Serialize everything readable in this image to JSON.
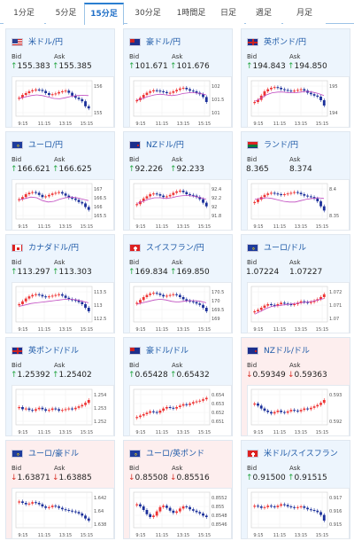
{
  "tabs": [
    {
      "label": "1分足",
      "active": false
    },
    {
      "label": "5分足",
      "active": false
    },
    {
      "label": "15分足",
      "active": true
    },
    {
      "label": "30分足",
      "active": false
    },
    {
      "label": "1時間足",
      "active": false
    },
    {
      "label": "日足",
      "active": false
    },
    {
      "label": "週足",
      "active": false
    },
    {
      "label": "月足",
      "active": false
    }
  ],
  "labels": {
    "bid": "Bid",
    "ask": "Ask"
  },
  "colors": {
    "up_arrow": "#28a745",
    "down_arrow": "#d9342b",
    "link": "#1e5aa8",
    "bull": "#e33",
    "bear": "#1a2f9a",
    "ma": "#c04ac0"
  },
  "pairs": [
    {
      "name": "米ドル/円",
      "flag": "us",
      "direction": "up",
      "bid": "155.383",
      "ask": "155.385",
      "yticks": [
        "156",
        "155"
      ],
      "xticks": [
        "9:15",
        "11:15",
        "13:15",
        "15:15"
      ],
      "trend": [
        0.52,
        0.6,
        0.65,
        0.7,
        0.73,
        0.75,
        0.74,
        0.71,
        0.65,
        0.6,
        0.62,
        0.64,
        0.68,
        0.7,
        0.72,
        0.66,
        0.58,
        0.52,
        0.48,
        0.42,
        0.28,
        0.22
      ],
      "ma": [
        0.5,
        0.54,
        0.58,
        0.6,
        0.58,
        0.54,
        0.5,
        0.49,
        0.52,
        0.56,
        0.58,
        0.59,
        0.58
      ]
    },
    {
      "name": "豪ドル/円",
      "flag": "au",
      "direction": "up",
      "bid": "101.671",
      "ask": "101.676",
      "yticks": [
        "102",
        "101.5",
        "101"
      ],
      "xticks": [
        "9:15",
        "11:15",
        "13:15",
        "15:15"
      ],
      "trend": [
        0.45,
        0.52,
        0.6,
        0.66,
        0.7,
        0.73,
        0.72,
        0.7,
        0.68,
        0.65,
        0.66,
        0.7,
        0.74,
        0.78,
        0.8,
        0.76,
        0.72,
        0.7,
        0.66,
        0.62,
        0.54,
        0.4
      ],
      "ma": [
        0.46,
        0.5,
        0.56,
        0.6,
        0.62,
        0.6,
        0.58,
        0.6,
        0.64,
        0.66,
        0.66,
        0.64,
        0.6
      ]
    },
    {
      "name": "英ポンド/円",
      "flag": "uk",
      "direction": "up",
      "bid": "194.843",
      "ask": "194.850",
      "yticks": [
        "195",
        "194"
      ],
      "xticks": [
        "9:15",
        "11:15",
        "13:15",
        "15:15"
      ],
      "trend": [
        0.4,
        0.46,
        0.58,
        0.7,
        0.76,
        0.8,
        0.82,
        0.8,
        0.76,
        0.74,
        0.72,
        0.7,
        0.72,
        0.74,
        0.76,
        0.72,
        0.66,
        0.62,
        0.58,
        0.55,
        0.45,
        0.3
      ],
      "ma": [
        0.42,
        0.5,
        0.6,
        0.66,
        0.68,
        0.68,
        0.66,
        0.66,
        0.68,
        0.7,
        0.68,
        0.64,
        0.58
      ]
    },
    {
      "name": "ユーロ/円",
      "flag": "eu",
      "direction": "up",
      "bid": "166.621",
      "ask": "166.625",
      "yticks": [
        "167",
        "166.5",
        "166",
        "165.5"
      ],
      "xticks": [
        "9:15",
        "11:15",
        "13:15",
        "15:15"
      ],
      "trend": [
        0.56,
        0.62,
        0.7,
        0.74,
        0.76,
        0.74,
        0.68,
        0.62,
        0.64,
        0.68,
        0.72,
        0.74,
        0.76,
        0.72,
        0.66,
        0.6,
        0.58,
        0.54,
        0.48,
        0.44,
        0.34,
        0.26
      ],
      "ma": [
        0.54,
        0.58,
        0.62,
        0.6,
        0.52,
        0.48,
        0.5,
        0.56,
        0.6,
        0.62,
        0.6,
        0.56,
        0.52
      ]
    },
    {
      "name": "NZドル/円",
      "flag": "nz",
      "direction": "up",
      "bid": "92.226",
      "ask": "92.233",
      "yticks": [
        "92.4",
        "92.2",
        "92",
        "91.8"
      ],
      "xticks": [
        "9:15",
        "11:15",
        "13:15",
        "15:15"
      ],
      "trend": [
        0.42,
        0.5,
        0.58,
        0.64,
        0.7,
        0.72,
        0.7,
        0.66,
        0.62,
        0.64,
        0.68,
        0.74,
        0.78,
        0.8,
        0.76,
        0.7,
        0.68,
        0.66,
        0.62,
        0.56,
        0.46,
        0.36
      ],
      "ma": [
        0.44,
        0.5,
        0.56,
        0.6,
        0.6,
        0.58,
        0.6,
        0.64,
        0.66,
        0.66,
        0.64,
        0.6,
        0.56
      ]
    },
    {
      "name": "ランド/円",
      "flag": "za",
      "direction": "none",
      "bid": "8.365",
      "ask": "8.374",
      "yticks": [
        "8.4",
        "8.35"
      ],
      "xticks": [
        "9:15",
        "11:15",
        "13:15",
        "15:15"
      ],
      "trend": [
        0.48,
        0.55,
        0.62,
        0.68,
        0.72,
        0.74,
        0.72,
        0.7,
        0.68,
        0.7,
        0.72,
        0.74,
        0.76,
        0.74,
        0.7,
        0.66,
        0.64,
        0.62,
        0.58,
        0.5,
        0.36,
        0.24
      ],
      "ma": [
        0.56,
        0.58,
        0.6,
        0.58,
        0.54,
        0.5,
        0.48,
        0.48,
        0.52,
        0.56,
        0.58,
        0.6,
        0.58
      ]
    },
    {
      "name": "カナダドル/円",
      "flag": "ca",
      "direction": "up",
      "bid": "113.297",
      "ask": "113.303",
      "yticks": [
        "113.5",
        "113",
        "112.5"
      ],
      "xticks": [
        "9:15",
        "11:15",
        "13:15",
        "15:15"
      ],
      "trend": [
        0.5,
        0.58,
        0.66,
        0.72,
        0.76,
        0.78,
        0.76,
        0.72,
        0.7,
        0.72,
        0.74,
        0.76,
        0.78,
        0.74,
        0.68,
        0.64,
        0.62,
        0.6,
        0.56,
        0.5,
        0.4,
        0.3
      ],
      "ma": [
        0.44,
        0.48,
        0.52,
        0.54,
        0.56,
        0.58,
        0.6,
        0.62,
        0.64,
        0.64,
        0.62,
        0.58,
        0.54
      ]
    },
    {
      "name": "スイスフラン/円",
      "flag": "ch",
      "direction": "up",
      "bid": "169.834",
      "ask": "169.850",
      "yticks": [
        "170.5",
        "170",
        "169.5",
        "169"
      ],
      "xticks": [
        "9:15",
        "11:15",
        "13:15",
        "15:15"
      ],
      "trend": [
        0.54,
        0.62,
        0.7,
        0.76,
        0.8,
        0.82,
        0.8,
        0.76,
        0.72,
        0.74,
        0.76,
        0.78,
        0.76,
        0.7,
        0.64,
        0.6,
        0.58,
        0.56,
        0.52,
        0.48,
        0.4,
        0.3
      ],
      "ma": [
        0.5,
        0.54,
        0.58,
        0.62,
        0.64,
        0.62,
        0.58,
        0.56,
        0.58,
        0.6,
        0.6,
        0.58,
        0.54
      ]
    },
    {
      "name": "ユーロ/ドル",
      "flag": "eu",
      "direction": "none",
      "bid": "1.07224",
      "ask": "1.07227",
      "yticks": [
        "1.072",
        "1.071",
        "1.07"
      ],
      "xticks": [
        "9:15",
        "11:15",
        "13:15",
        "15:15"
      ],
      "trend": [
        0.3,
        0.34,
        0.4,
        0.46,
        0.5,
        0.48,
        0.46,
        0.5,
        0.54,
        0.52,
        0.5,
        0.48,
        0.5,
        0.54,
        0.58,
        0.56,
        0.54,
        0.56,
        0.6,
        0.64,
        0.7,
        0.78
      ],
      "ma": [
        0.22,
        0.3,
        0.38,
        0.44,
        0.46,
        0.48,
        0.5,
        0.52,
        0.54,
        0.56,
        0.58,
        0.62,
        0.66
      ]
    },
    {
      "name": "英ポンド/ドル",
      "flag": "uk",
      "direction": "up",
      "bid": "1.25392",
      "ask": "1.25402",
      "yticks": [
        "1.254",
        "1.253",
        "1.252"
      ],
      "xticks": [
        "9:15",
        "11:15",
        "13:15",
        "15:15"
      ],
      "trend": [
        0.5,
        0.44,
        0.46,
        0.42,
        0.4,
        0.44,
        0.48,
        0.44,
        0.4,
        0.42,
        0.46,
        0.44,
        0.4,
        0.42,
        0.44,
        0.46,
        0.44,
        0.48,
        0.52,
        0.56,
        0.62,
        0.7
      ],
      "ma": []
    },
    {
      "name": "豪ドル/ドル",
      "flag": "au",
      "direction": "up",
      "bid": "0.65428",
      "ask": "0.65432",
      "yticks": [
        "0.654",
        "0.653",
        "0.652",
        "0.651"
      ],
      "xticks": [
        "9:15",
        "11:15",
        "13:15",
        "15:15"
      ],
      "trend": [
        0.22,
        0.26,
        0.3,
        0.34,
        0.38,
        0.36,
        0.34,
        0.4,
        0.46,
        0.5,
        0.48,
        0.46,
        0.5,
        0.54,
        0.58,
        0.56,
        0.6,
        0.64,
        0.66,
        0.68,
        0.72,
        0.76
      ],
      "ma": []
    },
    {
      "name": "NZドル/ドル",
      "flag": "nz",
      "direction": "down",
      "bid": "0.59349",
      "ask": "0.59363",
      "yticks": [
        "0.593",
        "0.592"
      ],
      "xticks": [
        "9:15",
        "11:15",
        "13:15",
        "15:15"
      ],
      "trend": [
        0.6,
        0.54,
        0.46,
        0.4,
        0.36,
        0.32,
        0.36,
        0.4,
        0.36,
        0.34,
        0.38,
        0.42,
        0.4,
        0.38,
        0.42,
        0.46,
        0.44,
        0.48,
        0.52,
        0.56,
        0.62,
        0.7
      ],
      "ma": []
    },
    {
      "name": "ユーロ/豪ドル",
      "flag": "eu",
      "direction": "down",
      "bid": "1.63871",
      "ask": "1.63885",
      "yticks": [
        "1.642",
        "1.64",
        "1.638"
      ],
      "xticks": [
        "9:15",
        "11:15",
        "13:15",
        "15:15"
      ],
      "trend": [
        0.74,
        0.7,
        0.66,
        0.68,
        0.72,
        0.7,
        0.66,
        0.6,
        0.56,
        0.58,
        0.62,
        0.6,
        0.56,
        0.52,
        0.5,
        0.48,
        0.46,
        0.44,
        0.4,
        0.34,
        0.26,
        0.2
      ],
      "ma": []
    },
    {
      "name": "ユーロ/英ポンド",
      "flag": "eu",
      "direction": "down",
      "bid": "0.85508",
      "ask": "0.85516",
      "yticks": [
        "0.8552",
        "0.855",
        "0.8548",
        "0.8546"
      ],
      "xticks": [
        "9:15",
        "11:15",
        "13:15",
        "15:15"
      ],
      "trend": [
        0.66,
        0.6,
        0.5,
        0.38,
        0.3,
        0.34,
        0.46,
        0.58,
        0.62,
        0.56,
        0.48,
        0.42,
        0.46,
        0.54,
        0.6,
        0.58,
        0.52,
        0.48,
        0.44,
        0.4,
        0.34,
        0.3
      ],
      "ma": []
    },
    {
      "name": "米ドル/スイスフラン",
      "flag": "ch",
      "direction": "up",
      "bid": "0.91500",
      "ask": "0.91515",
      "yticks": [
        "0.917",
        "0.916",
        "0.915"
      ],
      "xticks": [
        "9:15",
        "11:15",
        "13:15",
        "15:15"
      ],
      "trend": [
        0.62,
        0.6,
        0.56,
        0.58,
        0.62,
        0.6,
        0.58,
        0.62,
        0.66,
        0.64,
        0.6,
        0.58,
        0.56,
        0.58,
        0.6,
        0.56,
        0.52,
        0.5,
        0.48,
        0.44,
        0.36,
        0.2
      ],
      "ma": []
    }
  ]
}
